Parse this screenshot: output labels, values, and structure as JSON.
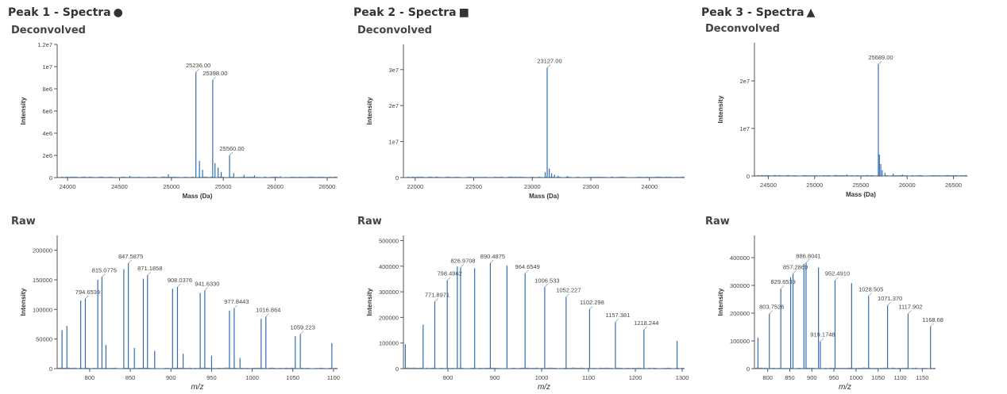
{
  "panels": [
    {
      "title": "Peak 1 - Spectra",
      "marker": "circle",
      "deconvolved_label": "Deconvolved",
      "raw_label": "Raw"
    },
    {
      "title": "Peak 2 - Spectra",
      "marker": "square",
      "deconvolved_label": "Deconvolved",
      "raw_label": "Raw"
    },
    {
      "title": "Peak 3 - Spectra",
      "marker": "triangle",
      "deconvolved_label": "Deconvolved",
      "raw_label": "Raw"
    }
  ],
  "colors": {
    "line": "#2f6fb0"
  },
  "chart_data": [
    {
      "id": "p1-deconv",
      "type": "line",
      "xlabel": "Mass (Da)",
      "ylabel": "Intensity",
      "xlim": [
        23900,
        26600
      ],
      "ylim": [
        0,
        12000000
      ],
      "xticks": [
        24000,
        24500,
        25000,
        25500,
        26000,
        26500
      ],
      "yticks": [
        0,
        2000000,
        4000000,
        6000000,
        8000000,
        10000000,
        12000000
      ],
      "ytick_labels": [
        "0",
        "2e6",
        "4e6",
        "6e6",
        "8e6",
        "1e7",
        "1.2e7"
      ],
      "peaks": [
        {
          "x": 25236,
          "y": 9500000,
          "label": "25236.00"
        },
        {
          "x": 25398,
          "y": 8800000,
          "label": "25398.00"
        },
        {
          "x": 25560,
          "y": 2000000,
          "label": "25560.00"
        },
        {
          "x": 24970,
          "y": 300000
        },
        {
          "x": 25270,
          "y": 1500000
        },
        {
          "x": 25300,
          "y": 700000
        },
        {
          "x": 25420,
          "y": 1300000
        },
        {
          "x": 25450,
          "y": 900000
        },
        {
          "x": 25480,
          "y": 500000
        },
        {
          "x": 25600,
          "y": 400000
        },
        {
          "x": 25700,
          "y": 250000
        },
        {
          "x": 24600,
          "y": 150000
        },
        {
          "x": 25800,
          "y": 200000
        },
        {
          "x": 26050,
          "y": 120000
        }
      ]
    },
    {
      "id": "p2-deconv",
      "type": "line",
      "xlabel": "Mass (Da)",
      "ylabel": "Intensity",
      "xlim": [
        21900,
        24300
      ],
      "ylim": [
        0,
        37000000
      ],
      "xticks": [
        22000,
        22500,
        23000,
        23500,
        24000
      ],
      "yticks": [
        0,
        10000000,
        20000000,
        30000000
      ],
      "ytick_labels": [
        "0",
        "1e7",
        "2e7",
        "3e7"
      ],
      "peaks": [
        {
          "x": 23127,
          "y": 30500000,
          "label": "23127.00"
        },
        {
          "x": 23110,
          "y": 1500000
        },
        {
          "x": 23145,
          "y": 2500000
        },
        {
          "x": 23165,
          "y": 1200000
        },
        {
          "x": 23190,
          "y": 800000
        },
        {
          "x": 23220,
          "y": 500000
        },
        {
          "x": 23300,
          "y": 400000
        },
        {
          "x": 22700,
          "y": 200000
        },
        {
          "x": 23600,
          "y": 150000
        }
      ]
    },
    {
      "id": "p3-deconv",
      "type": "line",
      "xlabel": "Mass (Da)",
      "ylabel": "Intensity",
      "xlim": [
        24350,
        26650
      ],
      "ylim": [
        0,
        28000000
      ],
      "xticks": [
        24500,
        25000,
        25500,
        26000,
        26500
      ],
      "yticks": [
        0,
        10000000,
        20000000
      ],
      "ytick_labels": [
        "0",
        "1e7",
        "2e7"
      ],
      "peaks": [
        {
          "x": 25689,
          "y": 23500000,
          "label": "25689.00"
        },
        {
          "x": 25700,
          "y": 4500000
        },
        {
          "x": 25715,
          "y": 2500000
        },
        {
          "x": 25730,
          "y": 1200000
        },
        {
          "x": 25760,
          "y": 700000
        },
        {
          "x": 25850,
          "y": 500000
        },
        {
          "x": 25950,
          "y": 300000
        },
        {
          "x": 25350,
          "y": 300000
        },
        {
          "x": 24900,
          "y": 150000
        }
      ]
    },
    {
      "id": "p1-raw",
      "type": "line",
      "xlabel": "m/z",
      "ylabel": "Intensity",
      "xlim": [
        760,
        1105
      ],
      "ylim": [
        0,
        225000
      ],
      "xticks": [
        800,
        850,
        900,
        950,
        1000,
        1050,
        1100
      ],
      "yticks": [
        0,
        50000,
        100000,
        150000,
        200000
      ],
      "ytick_labels": [
        "0",
        "50000",
        "100000",
        "150000",
        "200000"
      ],
      "peaks": [
        {
          "x": 794.6539,
          "y": 118000,
          "label": "794.6539"
        },
        {
          "x": 815.0775,
          "y": 155000,
          "label": "815.0775"
        },
        {
          "x": 847.5875,
          "y": 178000,
          "label": "847.5875"
        },
        {
          "x": 871.1858,
          "y": 158000,
          "label": "871.1858"
        },
        {
          "x": 908.0376,
          "y": 138000,
          "label": "908.0376"
        },
        {
          "x": 941.633,
          "y": 132000,
          "label": "941.6330"
        },
        {
          "x": 977.8443,
          "y": 102000,
          "label": "977.8443"
        },
        {
          "x": 1016.864,
          "y": 88000,
          "label": "1016.864"
        },
        {
          "x": 1059.223,
          "y": 58000,
          "label": "1059.223"
        },
        {
          "x": 766,
          "y": 65000
        },
        {
          "x": 772,
          "y": 72000
        },
        {
          "x": 789,
          "y": 115000
        },
        {
          "x": 810,
          "y": 150000
        },
        {
          "x": 842,
          "y": 168000
        },
        {
          "x": 866,
          "y": 152000
        },
        {
          "x": 902,
          "y": 135000
        },
        {
          "x": 936,
          "y": 128000
        },
        {
          "x": 972,
          "y": 98000
        },
        {
          "x": 1011,
          "y": 84000
        },
        {
          "x": 1053,
          "y": 55000
        },
        {
          "x": 1098,
          "y": 43000
        },
        {
          "x": 820,
          "y": 40000
        },
        {
          "x": 855,
          "y": 35000
        },
        {
          "x": 880,
          "y": 30000
        },
        {
          "x": 915,
          "y": 25000
        },
        {
          "x": 950,
          "y": 22000
        },
        {
          "x": 985,
          "y": 18000
        }
      ]
    },
    {
      "id": "p2-raw",
      "type": "line",
      "xlabel": "m/z",
      "ylabel": "Intensity",
      "xlim": [
        705,
        1305
      ],
      "ylim": [
        0,
        520000
      ],
      "xticks": [
        800,
        900,
        1000,
        1100,
        1200,
        1300
      ],
      "yticks": [
        0,
        100000,
        200000,
        300000,
        400000,
        500000
      ],
      "ytick_labels": [
        "0",
        "100000",
        "200000",
        "300000",
        "400000",
        "500000"
      ],
      "peaks": [
        {
          "x": 771.8971,
          "y": 262000,
          "label": "771.8971"
        },
        {
          "x": 798.4962,
          "y": 345000,
          "label": "798.4962"
        },
        {
          "x": 826.9708,
          "y": 395000,
          "label": "826.9708"
        },
        {
          "x": 890.4875,
          "y": 412000,
          "label": "890.4875"
        },
        {
          "x": 964.6549,
          "y": 372000,
          "label": "964.6549"
        },
        {
          "x": 1006.533,
          "y": 318000,
          "label": "1006.533"
        },
        {
          "x": 1052.227,
          "y": 280000,
          "label": "1052.227"
        },
        {
          "x": 1102.298,
          "y": 232000,
          "label": "1102.298"
        },
        {
          "x": 1157.381,
          "y": 182000,
          "label": "1157.381"
        },
        {
          "x": 1218.244,
          "y": 152000,
          "label": "1218.244"
        },
        {
          "x": 709,
          "y": 95000
        },
        {
          "x": 747,
          "y": 172000
        },
        {
          "x": 820,
          "y": 398000
        },
        {
          "x": 857,
          "y": 392000
        },
        {
          "x": 926,
          "y": 402000
        },
        {
          "x": 1289,
          "y": 108000
        }
      ]
    },
    {
      "id": "p3-raw",
      "type": "line",
      "xlabel": "m/z",
      "ylabel": "Intensity",
      "xlim": [
        770,
        1180
      ],
      "ylim": [
        0,
        480000
      ],
      "xticks": [
        800,
        850,
        900,
        950,
        1000,
        1050,
        1100,
        1150
      ],
      "yticks": [
        0,
        100000,
        200000,
        300000,
        400000
      ],
      "ytick_labels": [
        "0",
        "100000",
        "200000",
        "300000",
        "400000"
      ],
      "peaks": [
        {
          "x": 803.7526,
          "y": 198000,
          "label": "803.7526"
        },
        {
          "x": 829.6539,
          "y": 288000,
          "label": "829.6539"
        },
        {
          "x": 857.2869,
          "y": 342000,
          "label": "857.2869"
        },
        {
          "x": 886.8041,
          "y": 382000,
          "label": "886.8041"
        },
        {
          "x": 919.1748,
          "y": 98000,
          "label": "919.1748"
        },
        {
          "x": 952.491,
          "y": 318000,
          "label": "952.4910"
        },
        {
          "x": 1028.505,
          "y": 262000,
          "label": "1028.505"
        },
        {
          "x": 1071.37,
          "y": 228000,
          "label": "1071.370"
        },
        {
          "x": 1117.902,
          "y": 198000,
          "label": "1117.902"
        },
        {
          "x": 1168.68,
          "y": 152000,
          "label": "1168.68"
        },
        {
          "x": 778,
          "y": 112000
        },
        {
          "x": 852,
          "y": 330000
        },
        {
          "x": 882,
          "y": 378000
        },
        {
          "x": 915,
          "y": 365000
        },
        {
          "x": 990,
          "y": 308000
        }
      ]
    }
  ]
}
